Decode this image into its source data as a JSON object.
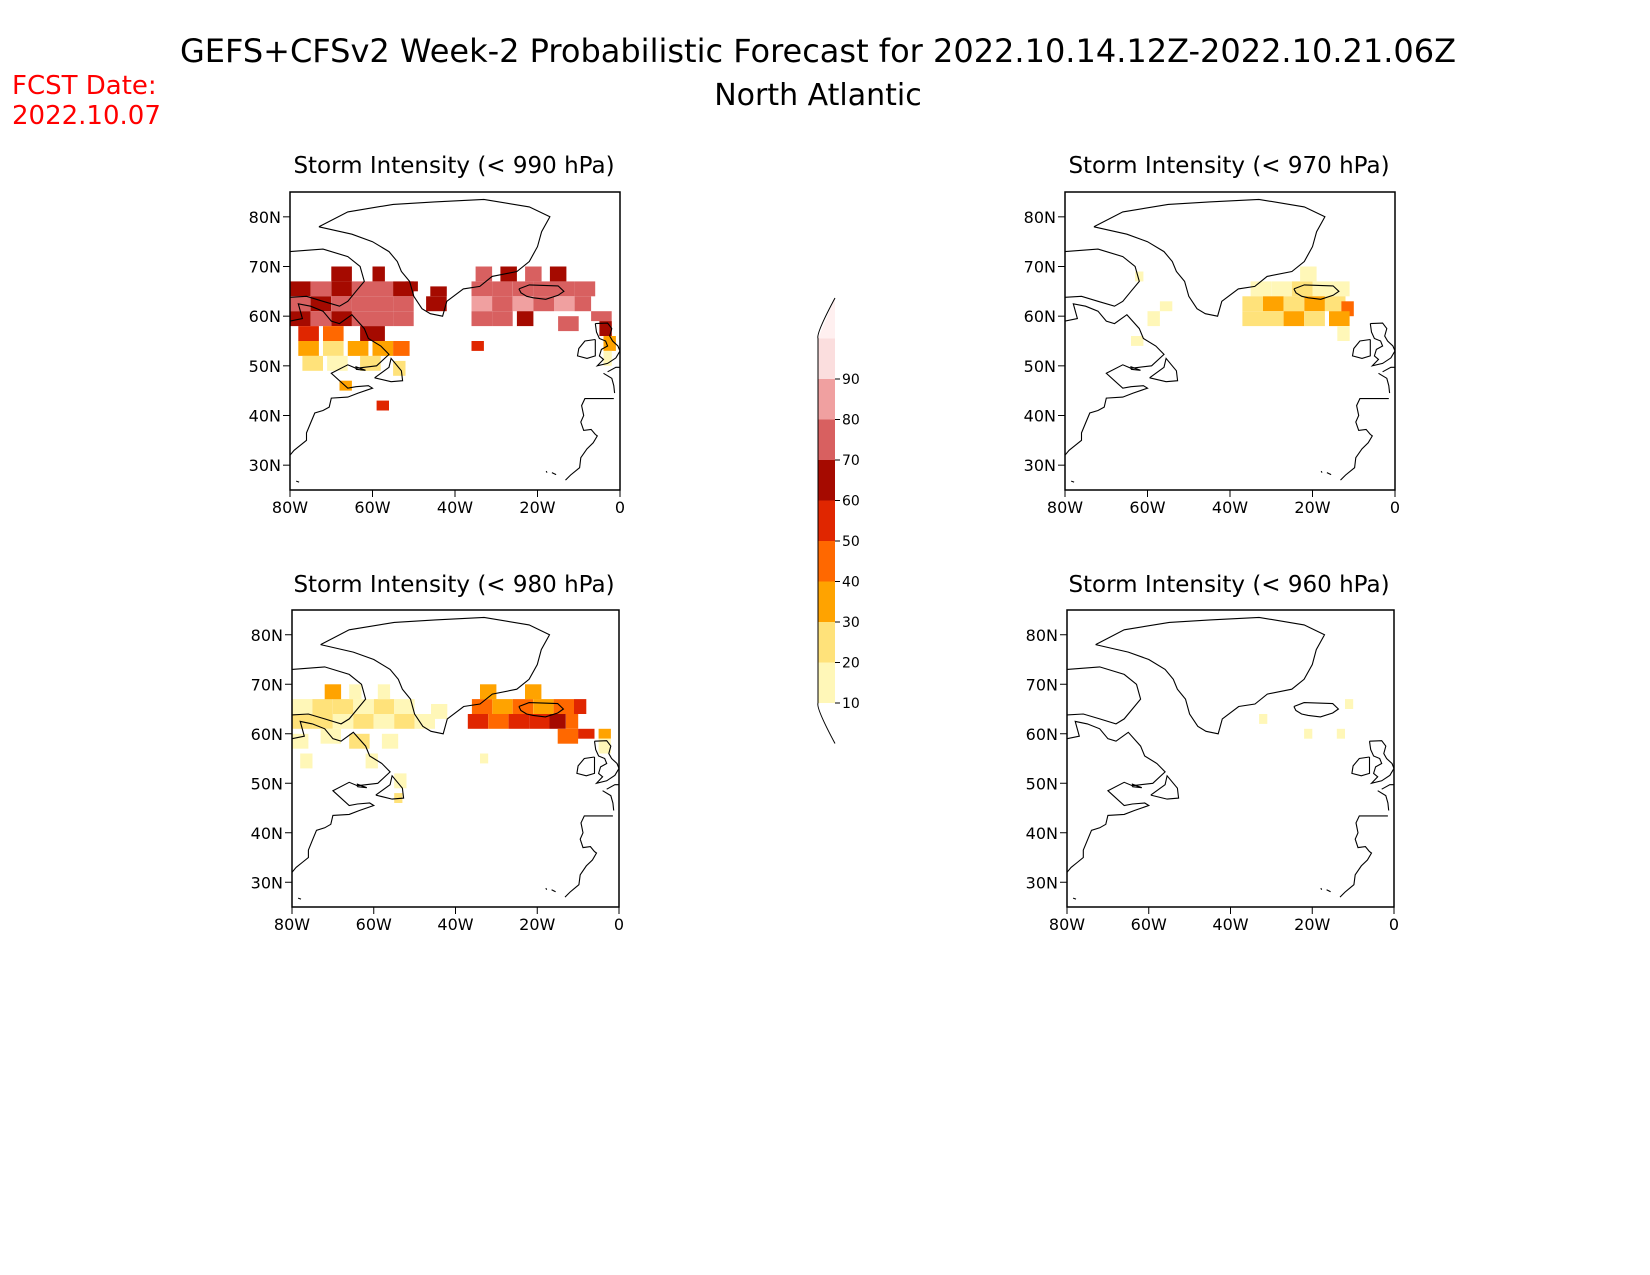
{
  "header": {
    "title": "GEFS+CFSv2 Week-2 Probabilistic Forecast for 2022.10.14.12Z-2022.10.21.06Z",
    "subtitle": "North Atlantic",
    "fcst_label": "FCST Date:",
    "fcst_date": "2022.10.07"
  },
  "axes": {
    "lon_ticks": [
      "80W",
      "60W",
      "40W",
      "20W",
      "0"
    ],
    "lat_ticks": [
      "80N",
      "70N",
      "60N",
      "50N",
      "40N",
      "30N"
    ],
    "lon_range": [
      -80,
      0
    ],
    "lat_range": [
      25,
      85
    ]
  },
  "colorbar": {
    "levels": [
      "10",
      "20",
      "30",
      "40",
      "50",
      "60",
      "70",
      "80",
      "90"
    ],
    "colors": [
      "#fff7b8",
      "#ffe27a",
      "#ffa300",
      "#ff6800",
      "#e02600",
      "#a50a00",
      "#d86060",
      "#f0a0a0",
      "#fbdede",
      "#fff0f0"
    ]
  },
  "panels": [
    {
      "id": "p990",
      "title": "Storm Intensity (< 990 hPa)",
      "cells": [
        [
          -80,
          64,
          5,
          3,
          "#a50a00"
        ],
        [
          -75,
          64,
          5,
          3,
          "#d86060"
        ],
        [
          -70,
          64,
          5,
          3,
          "#a50a00"
        ],
        [
          -65,
          64,
          5,
          3,
          "#d86060"
        ],
        [
          -60,
          64,
          5,
          3,
          "#d86060"
        ],
        [
          -55,
          64,
          5,
          3,
          "#a50a00"
        ],
        [
          -70,
          67,
          5,
          3,
          "#a50a00"
        ],
        [
          -60,
          67,
          3,
          3,
          "#a50a00"
        ],
        [
          -52,
          65,
          3,
          2,
          "#a50a00"
        ],
        [
          -80,
          61,
          5,
          3,
          "#d86060"
        ],
        [
          -75,
          61,
          5,
          3,
          "#a50a00"
        ],
        [
          -70,
          61,
          5,
          3,
          "#d86060"
        ],
        [
          -65,
          61,
          5,
          3,
          "#d86060"
        ],
        [
          -60,
          61,
          5,
          3,
          "#d86060"
        ],
        [
          -55,
          61,
          5,
          3,
          "#d86060"
        ],
        [
          -47,
          61,
          5,
          3,
          "#a50a00"
        ],
        [
          -46,
          64,
          4,
          2,
          "#a50a00"
        ],
        [
          -80,
          58,
          5,
          3,
          "#a50a00"
        ],
        [
          -75,
          58,
          5,
          3,
          "#d86060"
        ],
        [
          -70,
          58,
          5,
          3,
          "#a50a00"
        ],
        [
          -65,
          58,
          5,
          3,
          "#d86060"
        ],
        [
          -60,
          58,
          5,
          3,
          "#d86060"
        ],
        [
          -55,
          58,
          5,
          3,
          "#d86060"
        ],
        [
          -78,
          55,
          5,
          3,
          "#e02600"
        ],
        [
          -72,
          55,
          5,
          3,
          "#ff6800"
        ],
        [
          -63,
          55,
          6,
          3,
          "#a50a00"
        ],
        [
          -78,
          52,
          5,
          3,
          "#ffa300"
        ],
        [
          -72,
          52,
          5,
          3,
          "#ffe27a"
        ],
        [
          -66,
          52,
          5,
          3,
          "#ffa300"
        ],
        [
          -60,
          52,
          5,
          3,
          "#ffa300"
        ],
        [
          -55,
          52,
          4,
          3,
          "#ff6800"
        ],
        [
          -77,
          49,
          5,
          3,
          "#ffe27a"
        ],
        [
          -71,
          49,
          5,
          3,
          "#fff7b8"
        ],
        [
          -63,
          49,
          5,
          3,
          "#ffe27a"
        ],
        [
          -55,
          48,
          3,
          3,
          "#ffe27a"
        ],
        [
          -68,
          45,
          3,
          2,
          "#ffa300"
        ],
        [
          -59,
          41,
          3,
          2,
          "#e02600"
        ],
        [
          -36,
          53,
          3,
          2,
          "#e02600"
        ],
        [
          -36,
          64,
          5,
          3,
          "#d86060"
        ],
        [
          -31,
          64,
          5,
          3,
          "#d86060"
        ],
        [
          -26,
          64,
          5,
          3,
          "#d86060"
        ],
        [
          -21,
          64,
          5,
          3,
          "#d86060"
        ],
        [
          -16,
          64,
          5,
          3,
          "#d86060"
        ],
        [
          -11,
          64,
          5,
          3,
          "#d86060"
        ],
        [
          -35,
          67,
          4,
          3,
          "#d86060"
        ],
        [
          -29,
          67,
          4,
          3,
          "#a50a00"
        ],
        [
          -23,
          67,
          4,
          3,
          "#d86060"
        ],
        [
          -17,
          67,
          4,
          3,
          "#a50a00"
        ],
        [
          -36,
          61,
          5,
          3,
          "#f0a0a0"
        ],
        [
          -31,
          61,
          5,
          3,
          "#d86060"
        ],
        [
          -26,
          61,
          5,
          3,
          "#f0a0a0"
        ],
        [
          -21,
          61,
          5,
          3,
          "#d86060"
        ],
        [
          -16,
          61,
          5,
          3,
          "#f0a0a0"
        ],
        [
          -11,
          61,
          4,
          3,
          "#d86060"
        ],
        [
          -36,
          58,
          5,
          3,
          "#d86060"
        ],
        [
          -31,
          58,
          5,
          3,
          "#d86060"
        ],
        [
          -25,
          58,
          4,
          3,
          "#a50a00"
        ],
        [
          -15,
          57,
          5,
          3,
          "#d86060"
        ],
        [
          -7,
          59,
          5,
          2,
          "#d86060"
        ],
        [
          -5,
          56,
          3,
          3,
          "#a50a00"
        ],
        [
          -4,
          53,
          3,
          3,
          "#ffa300"
        ],
        [
          -4,
          50,
          2,
          3,
          "#fff7b8"
        ]
      ]
    },
    {
      "id": "p970",
      "title": "Storm Intensity (< 970 hPa)",
      "cells": [
        [
          -35,
          64,
          5,
          3,
          "#fff7b8"
        ],
        [
          -30,
          64,
          5,
          3,
          "#fff7b8"
        ],
        [
          -25,
          64,
          5,
          3,
          "#ffe27a"
        ],
        [
          -20,
          64,
          5,
          3,
          "#fff7b8"
        ],
        [
          -15,
          64,
          4,
          3,
          "#fff7b8"
        ],
        [
          -23,
          67,
          4,
          3,
          "#fff7b8"
        ],
        [
          -37,
          61,
          5,
          3,
          "#ffe27a"
        ],
        [
          -32,
          61,
          5,
          3,
          "#ffa300"
        ],
        [
          -27,
          61,
          5,
          3,
          "#ffe27a"
        ],
        [
          -22,
          61,
          5,
          3,
          "#ffa300"
        ],
        [
          -17,
          61,
          5,
          3,
          "#ffe27a"
        ],
        [
          -13,
          60,
          3,
          3,
          "#ff6800"
        ],
        [
          -37,
          58,
          5,
          3,
          "#ffe27a"
        ],
        [
          -32,
          58,
          5,
          3,
          "#ffe27a"
        ],
        [
          -27,
          58,
          5,
          3,
          "#ffa300"
        ],
        [
          -22,
          58,
          5,
          3,
          "#ffe27a"
        ],
        [
          -16,
          58,
          5,
          3,
          "#ffa300"
        ],
        [
          -14,
          55,
          3,
          3,
          "#fff7b8"
        ],
        [
          -57,
          61,
          3,
          2,
          "#fff7b8"
        ],
        [
          -60,
          58,
          3,
          3,
          "#fff7b8"
        ],
        [
          -63,
          67,
          2,
          2,
          "#fff7b8"
        ],
        [
          -64,
          54,
          3,
          2,
          "#fff7b8"
        ]
      ]
    },
    {
      "id": "p980",
      "title": "Storm Intensity (< 980 hPa)",
      "cells": [
        [
          -80,
          64,
          5,
          3,
          "#fff7b8"
        ],
        [
          -75,
          64,
          5,
          3,
          "#ffe27a"
        ],
        [
          -70,
          64,
          5,
          3,
          "#ffe27a"
        ],
        [
          -65,
          64,
          5,
          3,
          "#fff7b8"
        ],
        [
          -60,
          64,
          5,
          3,
          "#ffe27a"
        ],
        [
          -55,
          64,
          5,
          3,
          "#fff7b8"
        ],
        [
          -72,
          67,
          4,
          3,
          "#ffa300"
        ],
        [
          -66,
          67,
          3,
          3,
          "#fff7b8"
        ],
        [
          -59,
          67,
          3,
          3,
          "#fff7b8"
        ],
        [
          -80,
          61,
          5,
          3,
          "#ffe27a"
        ],
        [
          -75,
          61,
          5,
          3,
          "#ffe27a"
        ],
        [
          -70,
          61,
          5,
          3,
          "#fff7b8"
        ],
        [
          -65,
          61,
          5,
          3,
          "#ffe27a"
        ],
        [
          -60,
          61,
          5,
          3,
          "#fff7b8"
        ],
        [
          -55,
          61,
          5,
          3,
          "#ffe27a"
        ],
        [
          -50,
          61,
          5,
          3,
          "#fff7b8"
        ],
        [
          -46,
          63,
          4,
          3,
          "#fff7b8"
        ],
        [
          -80,
          57,
          4,
          3,
          "#fff7b8"
        ],
        [
          -73,
          58,
          5,
          3,
          "#fff7b8"
        ],
        [
          -66,
          57,
          5,
          3,
          "#ffe27a"
        ],
        [
          -58,
          57,
          4,
          3,
          "#fff7b8"
        ],
        [
          -78,
          53,
          3,
          3,
          "#fff7b8"
        ],
        [
          -62,
          53,
          3,
          3,
          "#fff7b8"
        ],
        [
          -55,
          49,
          3,
          3,
          "#fff7b8"
        ],
        [
          -55,
          46,
          2,
          2,
          "#ffe27a"
        ],
        [
          -36,
          64,
          5,
          3,
          "#ff6800"
        ],
        [
          -31,
          64,
          5,
          3,
          "#ffa300"
        ],
        [
          -26,
          64,
          5,
          3,
          "#ff6800"
        ],
        [
          -21,
          64,
          5,
          3,
          "#ffa300"
        ],
        [
          -16,
          64,
          5,
          3,
          "#ff6800"
        ],
        [
          -11,
          64,
          3,
          3,
          "#e02600"
        ],
        [
          -34,
          67,
          4,
          3,
          "#ffa300"
        ],
        [
          -23,
          67,
          4,
          3,
          "#ffa300"
        ],
        [
          -37,
          61,
          5,
          3,
          "#e02600"
        ],
        [
          -32,
          61,
          5,
          3,
          "#ff6800"
        ],
        [
          -27,
          61,
          5,
          3,
          "#e02600"
        ],
        [
          -22,
          61,
          5,
          3,
          "#e02600"
        ],
        [
          -17,
          61,
          4,
          3,
          "#a50a00"
        ],
        [
          -13,
          61,
          3,
          3,
          "#ff6800"
        ],
        [
          -15,
          58,
          5,
          3,
          "#ff6800"
        ],
        [
          -10,
          59,
          4,
          2,
          "#e02600"
        ],
        [
          -5,
          59,
          3,
          2,
          "#ffa300"
        ],
        [
          -5,
          56,
          3,
          3,
          "#fff7b8"
        ],
        [
          -34,
          54,
          2,
          2,
          "#fff7b8"
        ]
      ]
    },
    {
      "id": "p960",
      "title": "Storm Intensity (< 960 hPa)",
      "cells": [
        [
          -33,
          62,
          2,
          2,
          "#fff7b8"
        ],
        [
          -22,
          59,
          2,
          2,
          "#fff7b8"
        ],
        [
          -14,
          59,
          2,
          2,
          "#fff7b8"
        ],
        [
          -12,
          65,
          2,
          2,
          "#fff7b8"
        ]
      ]
    }
  ]
}
